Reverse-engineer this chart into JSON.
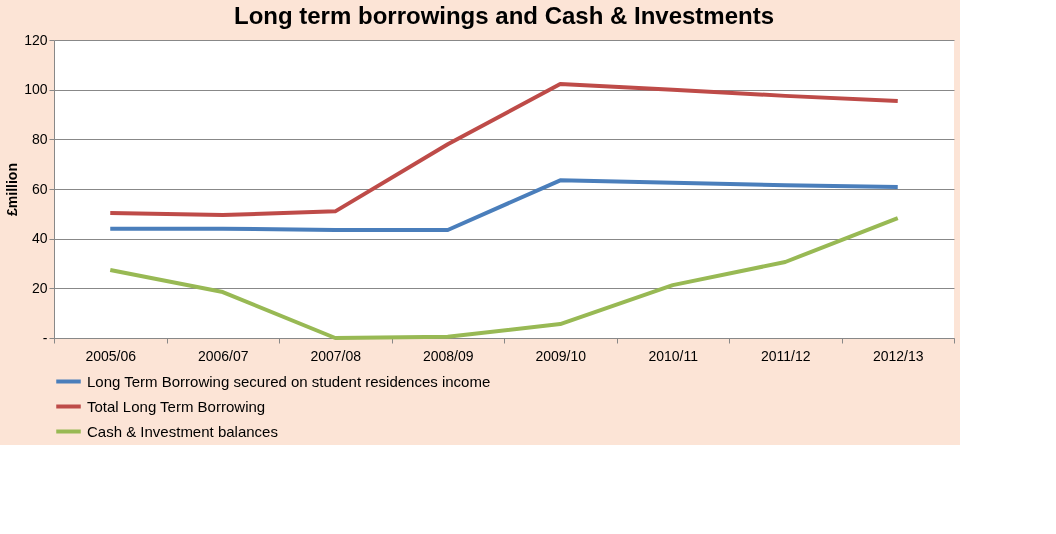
{
  "chart_data": {
    "type": "line",
    "title": "Long term borrowings and Cash & Investments",
    "ylabel": "£million",
    "categories": [
      "2005/06",
      "2006/07",
      "2007/08",
      "2008/09",
      "2009/10",
      "2010/11",
      "2011/12",
      "2012/13"
    ],
    "series": [
      {
        "name": "Long Term Borrowing secured on student residences income",
        "color": "#4a7ebb",
        "values": [
          44,
          44,
          43.5,
          43.5,
          63.5,
          62.5,
          61.5,
          60.8
        ]
      },
      {
        "name": "Total Long Term Borrowing",
        "color": "#be4b48",
        "values": [
          50.3,
          49.5,
          51,
          78,
          102.3,
          100,
          97.5,
          95.4
        ]
      },
      {
        "name": "Cash & Investment balances",
        "color": "#98b954",
        "values": [
          27.4,
          18.5,
          0,
          0.5,
          5.6,
          21.3,
          30.6,
          48.3
        ]
      }
    ],
    "ylim": [
      0,
      120
    ],
    "yticks": [
      {
        "value": 0,
        "label": "-"
      },
      20,
      40,
      60,
      80,
      100,
      120
    ],
    "grid": "y",
    "legend": "bottom",
    "marker": "none",
    "line_style": "solid"
  }
}
